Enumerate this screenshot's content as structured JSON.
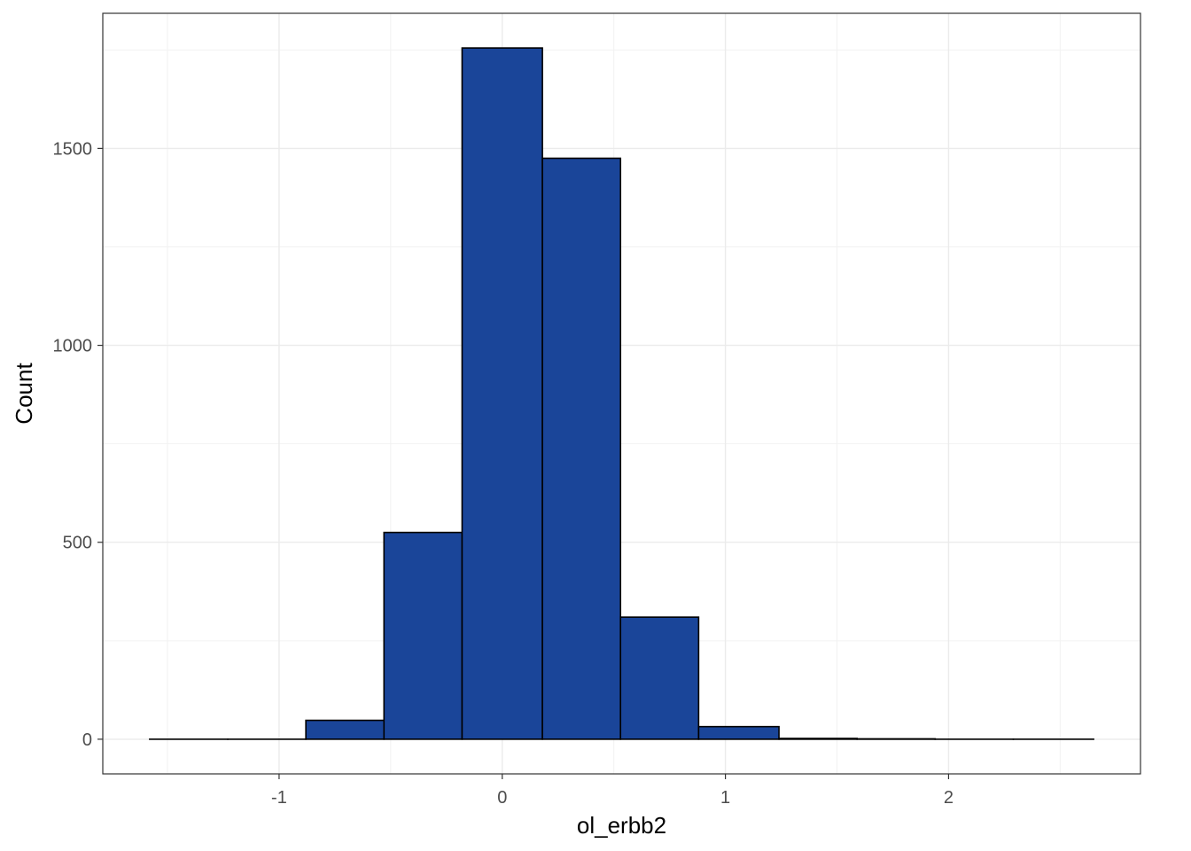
{
  "chart_data": {
    "type": "bar",
    "title": "",
    "xlabel": "ol_erbb2",
    "ylabel": "Count",
    "bins": [
      {
        "x0": -1.58,
        "x1": -1.23,
        "count": 0
      },
      {
        "x0": -1.23,
        "x1": -0.88,
        "count": 0
      },
      {
        "x0": -0.88,
        "x1": -0.53,
        "count": 48
      },
      {
        "x0": -0.53,
        "x1": -0.18,
        "count": 525
      },
      {
        "x0": -0.18,
        "x1": 0.18,
        "count": 1755
      },
      {
        "x0": 0.18,
        "x1": 0.53,
        "count": 1475
      },
      {
        "x0": 0.53,
        "x1": 0.88,
        "count": 310
      },
      {
        "x0": 0.88,
        "x1": 1.24,
        "count": 32
      },
      {
        "x0": 1.24,
        "x1": 1.59,
        "count": 2
      },
      {
        "x0": 1.59,
        "x1": 1.94,
        "count": 1
      },
      {
        "x0": 1.94,
        "x1": 2.29,
        "count": 0
      },
      {
        "x0": 2.29,
        "x1": 2.65,
        "count": 0
      }
    ],
    "xlim": [
      -1.79,
      2.86
    ],
    "ylim": [
      -88,
      1843
    ],
    "x_ticks": [
      {
        "value": -1,
        "label": "-1"
      },
      {
        "value": 0,
        "label": "0"
      },
      {
        "value": 1,
        "label": "1"
      },
      {
        "value": 2,
        "label": "2"
      }
    ],
    "y_ticks": [
      {
        "value": 0,
        "label": "0"
      },
      {
        "value": 500,
        "label": "500"
      },
      {
        "value": 1000,
        "label": "1000"
      },
      {
        "value": 1500,
        "label": "1500"
      }
    ],
    "grid": true,
    "legend": "none",
    "colors": {
      "bar_fill": "#1a4599",
      "bar_stroke": "#000000",
      "grid_major": "#ebebeb",
      "grid_minor": "#f2f2f2",
      "panel_border": "#333333"
    }
  }
}
